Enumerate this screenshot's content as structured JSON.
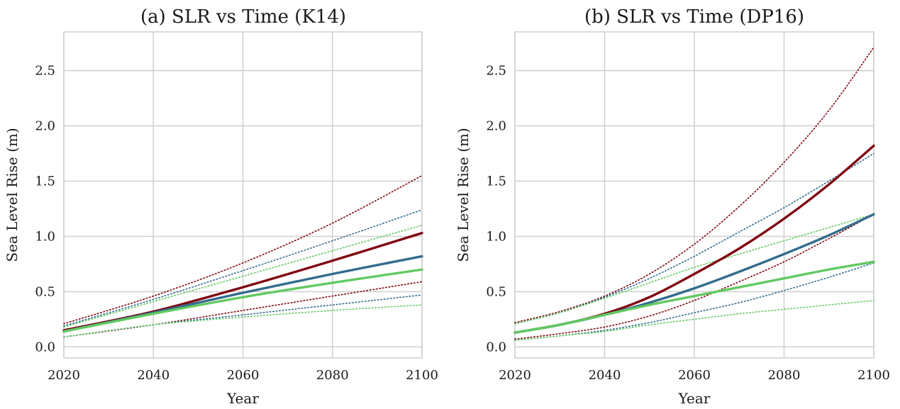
{
  "chart_data": [
    {
      "type": "line",
      "title": "(a) SLR vs Time (K14)",
      "xlabel": "Year",
      "ylabel": "Sea Level Rise (m)",
      "xlim": [
        2020,
        2100
      ],
      "ylim": [
        -0.1,
        2.85
      ],
      "xticks": [
        2020,
        2040,
        2060,
        2080,
        2100
      ],
      "yticks": [
        0.0,
        0.5,
        1.0,
        1.5,
        2.0,
        2.5
      ],
      "xtick_labels": [
        "2020",
        "2040",
        "2060",
        "2080",
        "2100"
      ],
      "ytick_labels": [
        "0.0",
        "0.5",
        "1.0",
        "1.5",
        "2.0",
        "2.5"
      ],
      "grid": true,
      "x": [
        2020,
        2040,
        2060,
        2080,
        2100
      ],
      "series": [
        {
          "color": "#800511",
          "style": "solid",
          "values": [
            0.15,
            0.32,
            0.54,
            0.78,
            1.03
          ]
        },
        {
          "color": "#336c8c",
          "style": "solid",
          "values": [
            0.14,
            0.31,
            0.49,
            0.66,
            0.82
          ]
        },
        {
          "color": "#62c961",
          "style": "solid",
          "values": [
            0.14,
            0.3,
            0.45,
            0.58,
            0.7
          ]
        },
        {
          "color": "#800511",
          "style": "dotted",
          "values": [
            0.21,
            0.46,
            0.76,
            1.12,
            1.55
          ]
        },
        {
          "color": "#336c8c",
          "style": "dotted",
          "values": [
            0.19,
            0.43,
            0.69,
            0.96,
            1.24
          ]
        },
        {
          "color": "#62c961",
          "style": "dotted",
          "values": [
            0.18,
            0.41,
            0.64,
            0.87,
            1.1
          ]
        },
        {
          "color": "#800511",
          "style": "dotted",
          "values": [
            0.09,
            0.2,
            0.33,
            0.46,
            0.59
          ]
        },
        {
          "color": "#336c8c",
          "style": "dotted",
          "values": [
            0.09,
            0.2,
            0.29,
            0.38,
            0.47
          ]
        },
        {
          "color": "#62c961",
          "style": "dotted",
          "values": [
            0.09,
            0.2,
            0.27,
            0.33,
            0.38
          ]
        }
      ]
    },
    {
      "type": "line",
      "title": "(b) SLR vs Time (DP16)",
      "xlabel": "Year",
      "ylabel": "Sea Level Rise (m)",
      "xlim": [
        2020,
        2100
      ],
      "ylim": [
        -0.1,
        2.85
      ],
      "xticks": [
        2020,
        2040,
        2060,
        2080,
        2100
      ],
      "yticks": [
        0.0,
        0.5,
        1.0,
        1.5,
        2.0,
        2.5
      ],
      "xtick_labels": [
        "2020",
        "2040",
        "2060",
        "2080",
        "2100"
      ],
      "ytick_labels": [
        "0.0",
        "0.5",
        "1.0",
        "1.5",
        "2.0",
        "2.5"
      ],
      "grid": true,
      "x": [
        2020,
        2030,
        2040,
        2050,
        2060,
        2070,
        2080,
        2090,
        2100
      ],
      "series": [
        {
          "color": "#800511",
          "style": "solid",
          "values": [
            0.13,
            0.2,
            0.3,
            0.45,
            0.66,
            0.89,
            1.16,
            1.47,
            1.82
          ]
        },
        {
          "color": "#336c8c",
          "style": "solid",
          "values": [
            0.13,
            0.2,
            0.29,
            0.4,
            0.53,
            0.68,
            0.84,
            1.01,
            1.2
          ]
        },
        {
          "color": "#62c961",
          "style": "solid",
          "values": [
            0.13,
            0.2,
            0.29,
            0.38,
            0.46,
            0.54,
            0.62,
            0.7,
            0.77
          ]
        },
        {
          "color": "#800511",
          "style": "dotted",
          "values": [
            0.22,
            0.32,
            0.46,
            0.66,
            0.93,
            1.27,
            1.67,
            2.14,
            2.71
          ]
        },
        {
          "color": "#336c8c",
          "style": "dotted",
          "values": [
            0.21,
            0.31,
            0.45,
            0.62,
            0.82,
            1.04,
            1.26,
            1.5,
            1.75
          ]
        },
        {
          "color": "#62c961",
          "style": "dotted",
          "values": [
            0.21,
            0.31,
            0.44,
            0.58,
            0.72,
            0.84,
            0.96,
            1.08,
            1.2
          ]
        },
        {
          "color": "#800511",
          "style": "dotted",
          "values": [
            0.07,
            0.12,
            0.18,
            0.28,
            0.42,
            0.59,
            0.77,
            0.98,
            1.2
          ]
        },
        {
          "color": "#336c8c",
          "style": "dotted",
          "values": [
            0.06,
            0.1,
            0.15,
            0.22,
            0.31,
            0.4,
            0.51,
            0.63,
            0.76
          ]
        },
        {
          "color": "#62c961",
          "style": "dotted",
          "values": [
            0.06,
            0.1,
            0.14,
            0.2,
            0.25,
            0.3,
            0.34,
            0.38,
            0.42
          ]
        }
      ]
    }
  ]
}
